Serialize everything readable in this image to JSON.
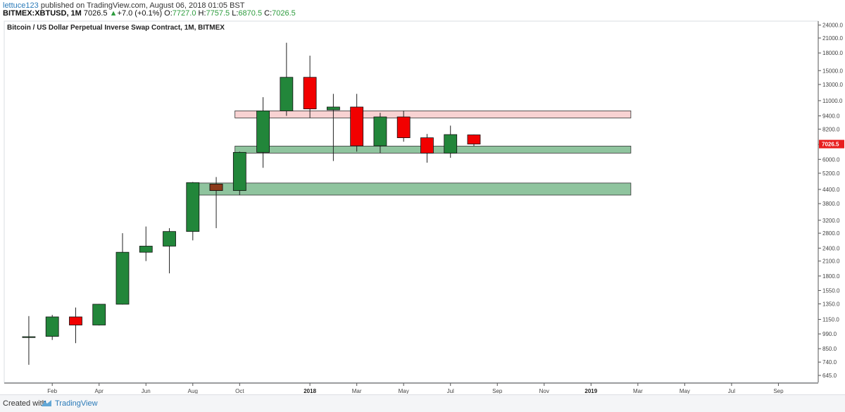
{
  "header": {
    "author": "lettuce123",
    "published_text": "published on TradingView.com, August 06, 2018 01:05 BST",
    "symbol": "BITMEX:XBTUSD, 1M",
    "last": "7026.5",
    "change_arrow": "▲",
    "change": "+7.0 (+0.1%)",
    "o_label": "O:",
    "o_value": "7727.0",
    "h_label": "H:",
    "h_value": "7757.5",
    "l_label": "L:",
    "l_value": "6870.5",
    "c_label": "C:",
    "c_value": "7026.5"
  },
  "footer": {
    "created_with": "Created with",
    "brand": "TradingView"
  },
  "colors": {
    "bull": "#22863a",
    "bear": "#f20000",
    "wick": "#222222",
    "support_zone": "#8fc49e",
    "resistance_zone": "#f8d2d2",
    "overlap_fill": "#8b3a1a",
    "price_tag": "#e81e1e",
    "grid": "#eef0f3",
    "axis_line": "#555555"
  },
  "chart_data": {
    "type": "candlestick",
    "title": "Bitcoin / US Dollar Perpetual Inverse Swap Contract, 1M, BITMEX",
    "y_scale": "log",
    "ylim": [
      600,
      25000
    ],
    "y_ticks": [
      "645.0",
      "740.0",
      "850.0",
      "990.0",
      "1150.0",
      "1350.0",
      "1550.0",
      "1800.0",
      "2100.0",
      "2400.0",
      "2800.0",
      "3200.0",
      "3800.0",
      "4400.0",
      "5200.0",
      "6000.0",
      "7000.0",
      "8200.0",
      "9400.0",
      "11000.0",
      "13000.0",
      "15000.0",
      "18000.0",
      "21000.0",
      "24000.0"
    ],
    "x_ticks": [
      "Feb",
      "Apr",
      "Jun",
      "Aug",
      "Oct",
      "2018",
      "Mar",
      "May",
      "Jul",
      "Sep",
      "Nov",
      "2019",
      "Mar",
      "May",
      "Jul",
      "Sep"
    ],
    "x_tick_month_index": [
      1,
      3,
      5,
      7,
      9,
      12,
      14,
      16,
      18,
      20,
      22,
      24,
      26,
      28,
      30,
      32
    ],
    "year_ticks": [
      "2018",
      "2019"
    ],
    "x_range_months": [
      -1.05,
      33.7
    ],
    "candles": [
      {
        "month": "2017-01",
        "open": 960,
        "high": 1190,
        "low": 720,
        "close": 962
      },
      {
        "month": "2017-02",
        "open": 965,
        "high": 1205,
        "low": 930,
        "close": 1180
      },
      {
        "month": "2017-03",
        "open": 1180,
        "high": 1300,
        "low": 900,
        "close": 1085
      },
      {
        "month": "2017-04",
        "open": 1085,
        "high": 1350,
        "low": 1080,
        "close": 1345
      },
      {
        "month": "2017-05",
        "open": 1345,
        "high": 2800,
        "low": 1340,
        "close": 2300
      },
      {
        "month": "2017-06",
        "open": 2300,
        "high": 3000,
        "low": 2100,
        "close": 2450
      },
      {
        "month": "2017-07",
        "open": 2450,
        "high": 2950,
        "low": 1850,
        "close": 2850
      },
      {
        "month": "2017-08",
        "open": 2850,
        "high": 4750,
        "low": 2600,
        "close": 4720
      },
      {
        "month": "2017-09",
        "open": 4650,
        "high": 5000,
        "low": 2950,
        "close": 4350
      },
      {
        "month": "2017-10",
        "open": 4350,
        "high": 6500,
        "low": 4150,
        "close": 6450
      },
      {
        "month": "2017-11",
        "open": 6450,
        "high": 11400,
        "low": 5500,
        "close": 9900
      },
      {
        "month": "2017-12",
        "open": 9900,
        "high": 20000,
        "low": 9400,
        "close": 14000
      },
      {
        "month": "2018-01",
        "open": 14000,
        "high": 17500,
        "low": 9200,
        "close": 10100
      },
      {
        "month": "2018-02",
        "open": 10000,
        "high": 11800,
        "low": 5900,
        "close": 10300
      },
      {
        "month": "2018-03",
        "open": 10300,
        "high": 11800,
        "low": 6500,
        "close": 6900
      },
      {
        "month": "2018-04",
        "open": 6900,
        "high": 9700,
        "low": 6400,
        "close": 9300
      },
      {
        "month": "2018-05",
        "open": 9300,
        "high": 9900,
        "low": 7200,
        "close": 7500
      },
      {
        "month": "2018-06",
        "open": 7500,
        "high": 7800,
        "low": 5800,
        "close": 6400
      },
      {
        "month": "2018-07",
        "open": 6400,
        "high": 8500,
        "low": 6100,
        "close": 7750
      },
      {
        "month": "2018-08",
        "open": 7727.0,
        "high": 7757.5,
        "low": 6870.5,
        "close": 7026.5
      }
    ],
    "zones": [
      {
        "kind": "resistance",
        "x_start_month": 8.8,
        "x_end_month": 25.7,
        "low": 9200,
        "high": 9900
      },
      {
        "kind": "support",
        "x_start_month": 8.8,
        "x_end_month": 25.7,
        "low": 6400,
        "high": 6880
      },
      {
        "kind": "support",
        "x_start_month": 6.85,
        "x_end_month": 25.7,
        "low": 4150,
        "high": 4700
      }
    ],
    "last_price_label": "7026.5"
  }
}
